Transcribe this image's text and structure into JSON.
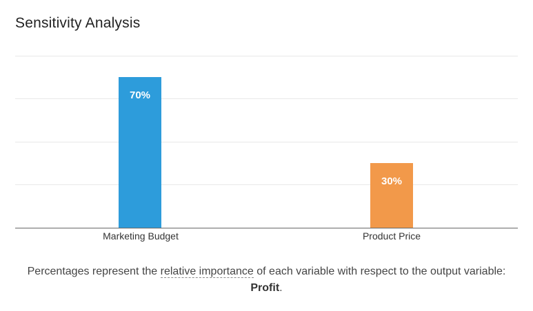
{
  "title": "Sensitivity Analysis",
  "note": {
    "prefix": "Percentages represent the ",
    "term": "relative importance",
    "middle": " of each variable with respect to the output variable: ",
    "output_variable": "Profit",
    "suffix": "."
  },
  "colors": {
    "bar1": "#2d9cdb",
    "bar2": "#f2994a"
  },
  "bars": [
    {
      "label": "Marketing Budget",
      "value_label": "70%"
    },
    {
      "label": "Product Price",
      "value_label": "30%"
    }
  ],
  "chart_data": {
    "type": "bar",
    "title": "Sensitivity Analysis",
    "categories": [
      "Marketing Budget",
      "Product Price"
    ],
    "values": [
      70,
      30
    ],
    "data_labels": [
      "70%",
      "30%"
    ],
    "xlabel": "",
    "ylabel": "",
    "ylim": [
      0,
      80
    ],
    "grid": true,
    "gridlines_y": [
      0,
      20,
      40,
      60,
      80
    ],
    "legend": null,
    "colors": [
      "#2d9cdb",
      "#f2994a"
    ]
  }
}
